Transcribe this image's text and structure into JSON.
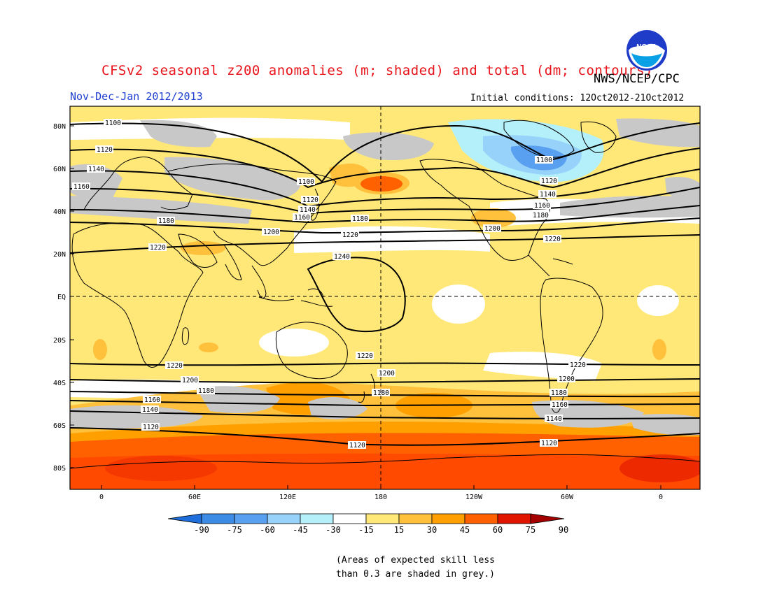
{
  "title": "CFSv2 seasonal z200 anomalies (m; shaded) and total (dm; contours)",
  "subtitle": "Nov-Dec-Jan 2012/2013",
  "initial_conditions": "Initial conditions: 12Oct2012-21Oct2012",
  "agency": "NWS/NCEP/CPC",
  "logo_text": "NOAA",
  "note_line1": "(Areas of expected skill less",
  "note_line2": "than 0.3 are shaded in grey.)",
  "lat_labels": [
    "80N",
    "60N",
    "40N",
    "20N",
    "EQ",
    "20S",
    "40S",
    "60S",
    "80S"
  ],
  "lon_labels": [
    "0",
    "60E",
    "120E",
    "180",
    "120W",
    "60W",
    "0"
  ],
  "colorbar": {
    "ticks": [
      "-90",
      "-75",
      "-60",
      "-45",
      "-30",
      "-15",
      "15",
      "30",
      "45",
      "60",
      "75",
      "90"
    ],
    "colors": [
      "#1e6fdc",
      "#3c8ce6",
      "#5aa0f0",
      "#96d2fa",
      "#b4f0fa",
      "#ffffff",
      "#ffe878",
      "#ffc03c",
      "#ffa000",
      "#ff6000",
      "#e11400",
      "#a50000"
    ]
  },
  "contour_labels": {
    "c1100": "1100",
    "c1120": "1120",
    "c1140": "1140",
    "c1160": "1160",
    "c1180": "1180",
    "c1200": "1200",
    "c1220": "1220",
    "c1240": "1240"
  }
}
